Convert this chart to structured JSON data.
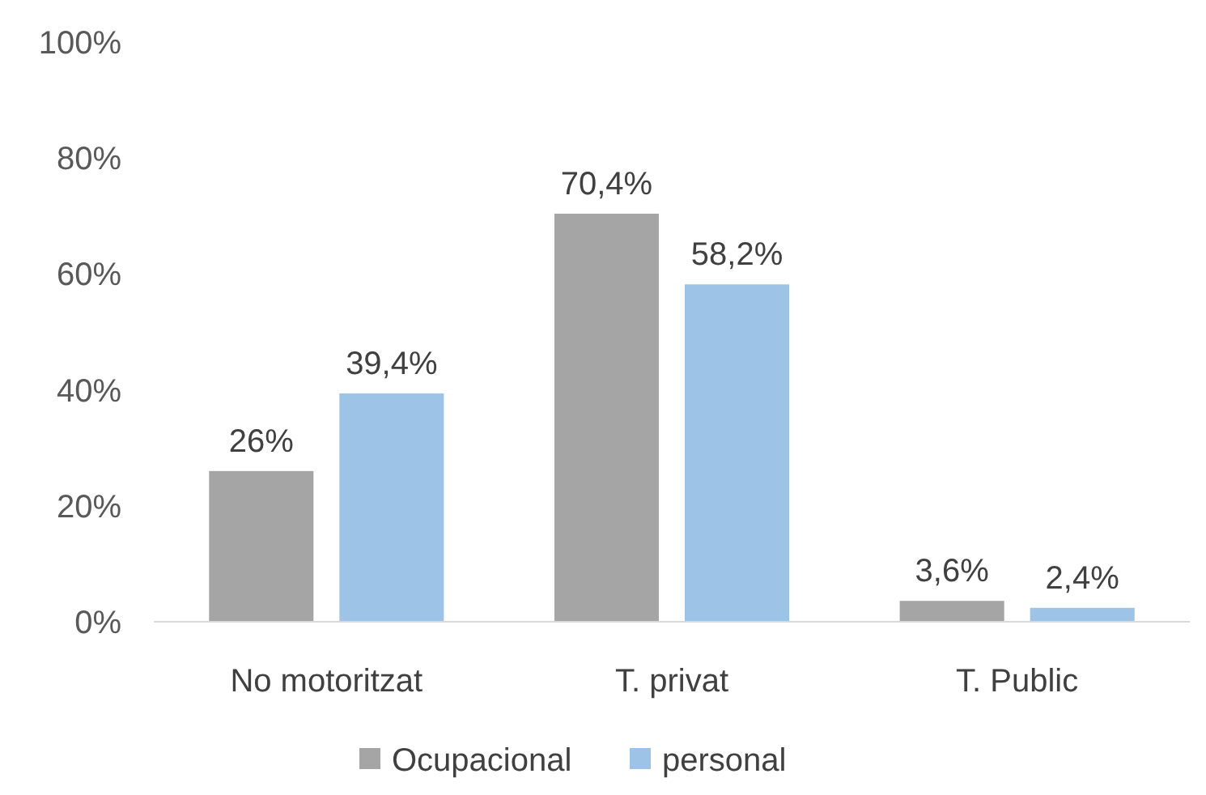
{
  "chart_data": {
    "type": "bar",
    "categories": [
      "No motoritzat",
      "T. privat",
      "T. Public"
    ],
    "series": [
      {
        "name": "Ocupacional",
        "color": "#a5a5a5",
        "values": [
          26,
          70.4,
          3.6
        ],
        "value_labels": [
          "26%",
          "70,4%",
          "3,6%"
        ]
      },
      {
        "name": "personal",
        "color": "#9dc3e6",
        "values": [
          39.4,
          58.2,
          2.4
        ],
        "value_labels": [
          "39,4%",
          "58,2%",
          "2,4%"
        ]
      }
    ],
    "ylim": [
      0,
      100
    ],
    "yticks": [
      {
        "value": 0,
        "label": "0%"
      },
      {
        "value": 20,
        "label": "20%"
      },
      {
        "value": 40,
        "label": "40%"
      },
      {
        "value": 60,
        "label": "60%"
      },
      {
        "value": 80,
        "label": "80%"
      },
      {
        "value": 100,
        "label": "100%"
      }
    ],
    "grid": false,
    "legend": "bottom"
  }
}
